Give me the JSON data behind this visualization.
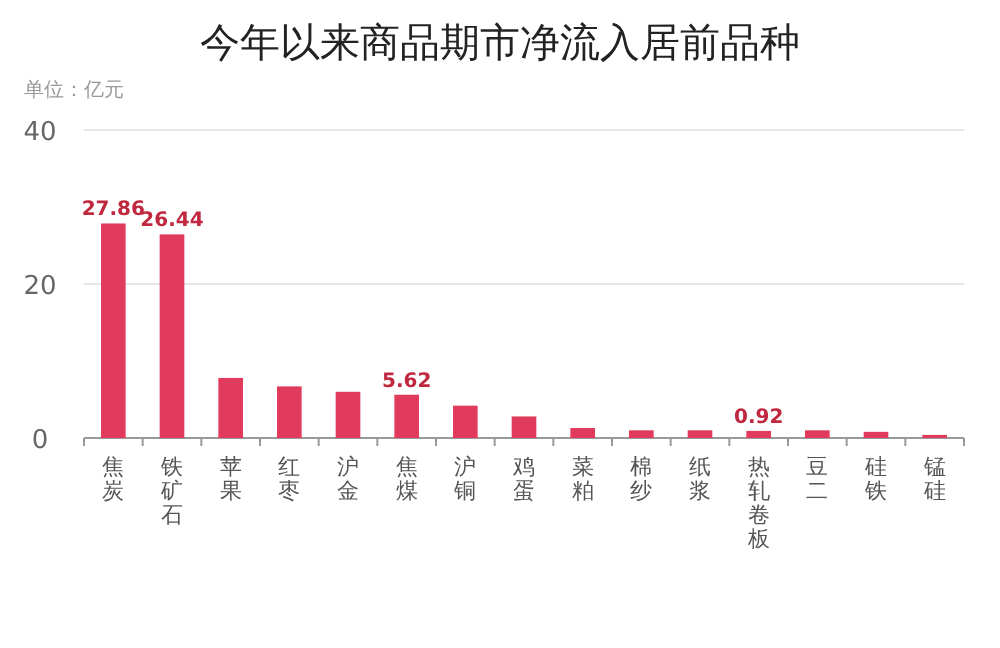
{
  "chart_data": {
    "type": "bar",
    "title": "今年以来商品期市净流入居前品种",
    "ylabel": "单位：亿元",
    "categories": [
      "焦炭",
      "铁矿石",
      "苹果",
      "红枣",
      "沪金",
      "焦煤",
      "沪铜",
      "鸡蛋",
      "菜粕",
      "棉纱",
      "纸浆",
      "热轧卷板",
      "豆二",
      "硅铁",
      "锰硅"
    ],
    "values": [
      27.86,
      26.44,
      7.8,
      6.7,
      6.0,
      5.62,
      4.2,
      2.8,
      1.3,
      1.0,
      1.0,
      0.92,
      1.0,
      0.8,
      0.4
    ],
    "value_labels": [
      "27.86",
      "26.44",
      null,
      null,
      null,
      "5.62",
      null,
      null,
      null,
      null,
      null,
      "0.92",
      null,
      null,
      null
    ],
    "color": "#e03a5c",
    "ylim": [
      0,
      40
    ],
    "yticks": [
      0,
      20,
      40
    ],
    "grid": "y"
  }
}
